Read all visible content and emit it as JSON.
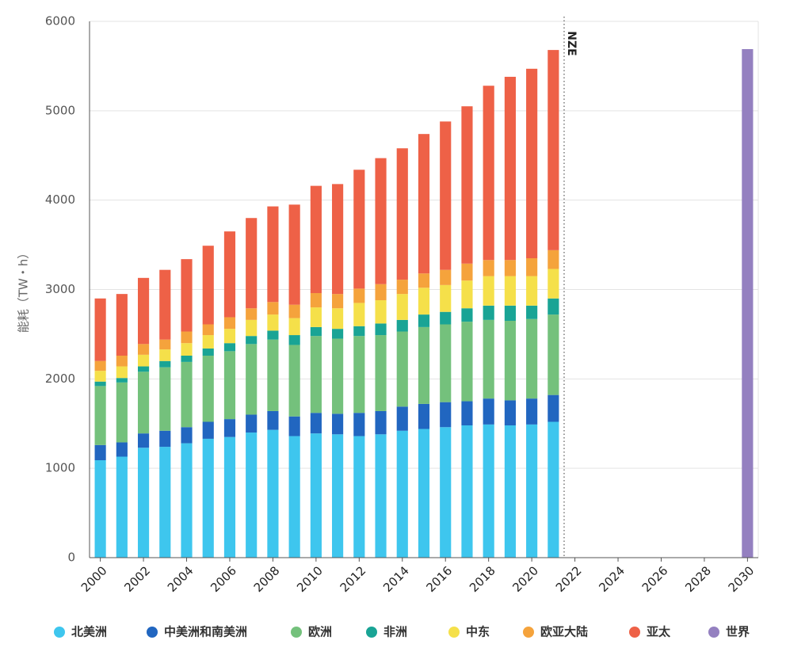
{
  "chart_data": {
    "type": "stacked_bar",
    "y_label": "能耗（TW・h）",
    "x": [
      2000,
      2001,
      2002,
      2003,
      2004,
      2005,
      2006,
      2007,
      2008,
      2009,
      2010,
      2011,
      2012,
      2013,
      2014,
      2015,
      2016,
      2017,
      2018,
      2019,
      2020,
      2021,
      2030
    ],
    "xlim": [
      1999.5,
      2030.5
    ],
    "xticks": [
      2000,
      2002,
      2004,
      2006,
      2008,
      2010,
      2012,
      2014,
      2016,
      2018,
      2020,
      2022,
      2024,
      2026,
      2028,
      2030
    ],
    "ylim": [
      0,
      6000
    ],
    "yticks": [
      0,
      1000,
      2000,
      3000,
      4000,
      5000,
      6000
    ],
    "grid": true,
    "legend": "bottom",
    "annotations": [
      {
        "text": "NZE",
        "x": 2021.5
      }
    ],
    "series": [
      {
        "name": "北美洲",
        "color": "#3ec6ee",
        "values": [
          1090,
          1130,
          1230,
          1240,
          1280,
          1330,
          1350,
          1400,
          1430,
          1360,
          1390,
          1380,
          1360,
          1380,
          1420,
          1440,
          1460,
          1480,
          1490,
          1480,
          1490,
          1520,
          null
        ]
      },
      {
        "name": "中美洲和南美洲",
        "color": "#2166c0",
        "values": [
          170,
          160,
          160,
          180,
          180,
          190,
          200,
          200,
          210,
          220,
          230,
          230,
          260,
          260,
          270,
          280,
          280,
          270,
          290,
          280,
          290,
          300,
          null
        ]
      },
      {
        "name": "欧洲",
        "color": "#74c17c",
        "values": [
          660,
          670,
          690,
          710,
          730,
          740,
          760,
          790,
          800,
          800,
          860,
          840,
          860,
          850,
          840,
          860,
          870,
          890,
          880,
          890,
          890,
          900,
          null
        ]
      },
      {
        "name": "非洲",
        "color": "#19a495",
        "values": [
          50,
          50,
          60,
          70,
          70,
          80,
          90,
          90,
          100,
          110,
          100,
          110,
          110,
          130,
          130,
          140,
          140,
          150,
          160,
          170,
          150,
          180,
          null
        ]
      },
      {
        "name": "中东",
        "color": "#f5e04a",
        "values": [
          120,
          130,
          130,
          130,
          140,
          150,
          160,
          180,
          180,
          190,
          220,
          230,
          260,
          260,
          290,
          300,
          300,
          310,
          330,
          330,
          330,
          330,
          null
        ]
      },
      {
        "name": "欧亚大陆",
        "color": "#f5a33c",
        "values": [
          110,
          120,
          120,
          110,
          130,
          120,
          130,
          130,
          140,
          150,
          160,
          160,
          160,
          180,
          160,
          160,
          170,
          190,
          180,
          180,
          200,
          210,
          null
        ]
      },
      {
        "name": "亚太",
        "color": "#ee6147",
        "values": [
          700,
          690,
          740,
          780,
          810,
          880,
          960,
          1010,
          1070,
          1120,
          1200,
          1230,
          1330,
          1410,
          1470,
          1560,
          1660,
          1760,
          1950,
          2050,
          2120,
          2240,
          null
        ]
      },
      {
        "name": "世界",
        "color": "#9480c0",
        "values": [
          null,
          null,
          null,
          null,
          null,
          null,
          null,
          null,
          null,
          null,
          null,
          null,
          null,
          null,
          null,
          null,
          null,
          null,
          null,
          null,
          null,
          null,
          5690
        ]
      }
    ]
  }
}
